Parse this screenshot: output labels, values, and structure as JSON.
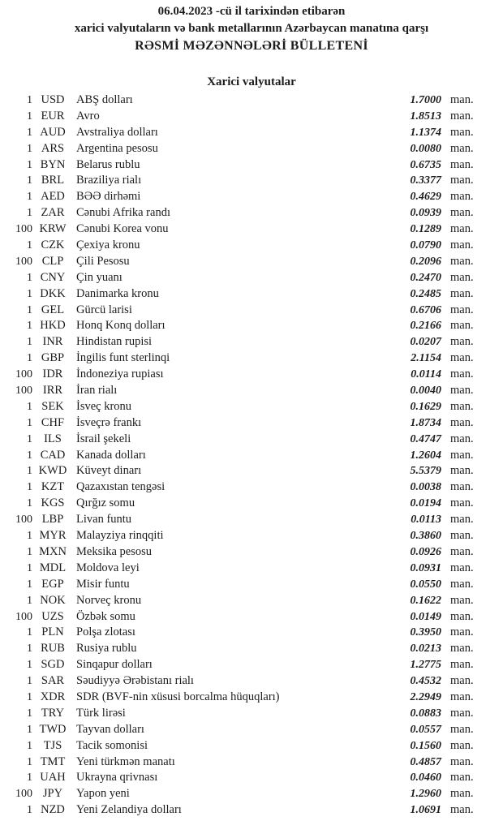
{
  "header": {
    "line1": "06.04.2023 -cü il tarixindən etibarən",
    "line2": "xarici valyutaların və bank metallarının Azərbaycan manatına qarşı",
    "line3": "RƏSMİ MƏZƏNNƏLƏRİ BÜLLETENİ"
  },
  "section_title": "Xarici valyutalar",
  "unit_label": "man.",
  "rates": [
    {
      "qty": "1",
      "code": "USD",
      "name": "ABŞ dolları",
      "rate": "1.7000"
    },
    {
      "qty": "1",
      "code": "EUR",
      "name": "Avro",
      "rate": "1.8513"
    },
    {
      "qty": "1",
      "code": "AUD",
      "name": "Avstraliya dolları",
      "rate": "1.1374"
    },
    {
      "qty": "1",
      "code": "ARS",
      "name": "Argentina pesosu",
      "rate": "0.0080"
    },
    {
      "qty": "1",
      "code": "BYN",
      "name": "Belarus rublu",
      "rate": "0.6735"
    },
    {
      "qty": "1",
      "code": "BRL",
      "name": "Braziliya rialı",
      "rate": "0.3377"
    },
    {
      "qty": "1",
      "code": "AED",
      "name": "BƏƏ dirhəmi",
      "rate": "0.4629"
    },
    {
      "qty": "1",
      "code": "ZAR",
      "name": "Cənubi Afrika randı",
      "rate": "0.0939"
    },
    {
      "qty": "100",
      "code": "KRW",
      "name": "Cənubi Korea vonu",
      "rate": "0.1289"
    },
    {
      "qty": "1",
      "code": "CZK",
      "name": "Çexiya kronu",
      "rate": "0.0790"
    },
    {
      "qty": "100",
      "code": "CLP",
      "name": "Çili Pesosu",
      "rate": "0.2096"
    },
    {
      "qty": "1",
      "code": "CNY",
      "name": "Çin yuanı",
      "rate": "0.2470"
    },
    {
      "qty": "1",
      "code": "DKK",
      "name": "Danimarka kronu",
      "rate": "0.2485"
    },
    {
      "qty": "1",
      "code": "GEL",
      "name": "Gürcü larisi",
      "rate": "0.6706"
    },
    {
      "qty": "1",
      "code": "HKD",
      "name": "Honq Konq dolları",
      "rate": "0.2166"
    },
    {
      "qty": "1",
      "code": "INR",
      "name": "Hindistan rupisi",
      "rate": "0.0207"
    },
    {
      "qty": "1",
      "code": "GBP",
      "name": "İngilis funt sterlinqi",
      "rate": "2.1154"
    },
    {
      "qty": "100",
      "code": "IDR",
      "name": "İndoneziya rupiası",
      "rate": "0.0114"
    },
    {
      "qty": "100",
      "code": "IRR",
      "name": "İran rialı",
      "rate": "0.0040"
    },
    {
      "qty": "1",
      "code": "SEK",
      "name": "İsveç kronu",
      "rate": "0.1629"
    },
    {
      "qty": "1",
      "code": "CHF",
      "name": "İsveçrə frankı",
      "rate": "1.8734"
    },
    {
      "qty": "1",
      "code": "ILS",
      "name": "İsrail şekeli",
      "rate": "0.4747"
    },
    {
      "qty": "1",
      "code": "CAD",
      "name": "Kanada dolları",
      "rate": "1.2604"
    },
    {
      "qty": "1",
      "code": "KWD",
      "name": "Küveyt dinarı",
      "rate": "5.5379"
    },
    {
      "qty": "1",
      "code": "KZT",
      "name": "Qazaxıstan tengəsi",
      "rate": "0.0038"
    },
    {
      "qty": "1",
      "code": "KGS",
      "name": "Qırğız somu",
      "rate": "0.0194"
    },
    {
      "qty": "100",
      "code": "LBP",
      "name": "Livan funtu",
      "rate": "0.0113"
    },
    {
      "qty": "1",
      "code": "MYR",
      "name": "Malayziya rinqqiti",
      "rate": "0.3860"
    },
    {
      "qty": "1",
      "code": "MXN",
      "name": "Meksika pesosu",
      "rate": "0.0926"
    },
    {
      "qty": "1",
      "code": "MDL",
      "name": "Moldova leyi",
      "rate": "0.0931"
    },
    {
      "qty": "1",
      "code": "EGP",
      "name": "Misir funtu",
      "rate": "0.0550"
    },
    {
      "qty": "1",
      "code": "NOK",
      "name": "Norveç kronu",
      "rate": "0.1622"
    },
    {
      "qty": "100",
      "code": "UZS",
      "name": "Özbək somu",
      "rate": "0.0149"
    },
    {
      "qty": "1",
      "code": "PLN",
      "name": "Polşa zlotası",
      "rate": "0.3950"
    },
    {
      "qty": "1",
      "code": "RUB",
      "name": "Rusiya rublu",
      "rate": "0.0213"
    },
    {
      "qty": "1",
      "code": "SGD",
      "name": "Sinqapur dolları",
      "rate": "1.2775"
    },
    {
      "qty": "1",
      "code": "SAR",
      "name": "Səudiyyə Ərəbistanı rialı",
      "rate": "0.4532"
    },
    {
      "qty": "1",
      "code": "XDR",
      "name": "SDR (BVF-nin xüsusi borcalma hüquqları)",
      "rate": "2.2949"
    },
    {
      "qty": "1",
      "code": "TRY",
      "name": "Türk lirəsi",
      "rate": "0.0883"
    },
    {
      "qty": "1",
      "code": "TWD",
      "name": "Tayvan dolları",
      "rate": "0.0557"
    },
    {
      "qty": "1",
      "code": "TJS",
      "name": "Tacik somonisi",
      "rate": "0.1560"
    },
    {
      "qty": "1",
      "code": "TMT",
      "name": "Yeni türkmən manatı",
      "rate": "0.4857"
    },
    {
      "qty": "1",
      "code": "UAH",
      "name": "Ukrayna qrivnası",
      "rate": "0.0460"
    },
    {
      "qty": "100",
      "code": "JPY",
      "name": "Yapon yeni",
      "rate": "1.2960"
    },
    {
      "qty": "1",
      "code": "NZD",
      "name": "Yeni Zelandiya dolları",
      "rate": "1.0691"
    }
  ]
}
